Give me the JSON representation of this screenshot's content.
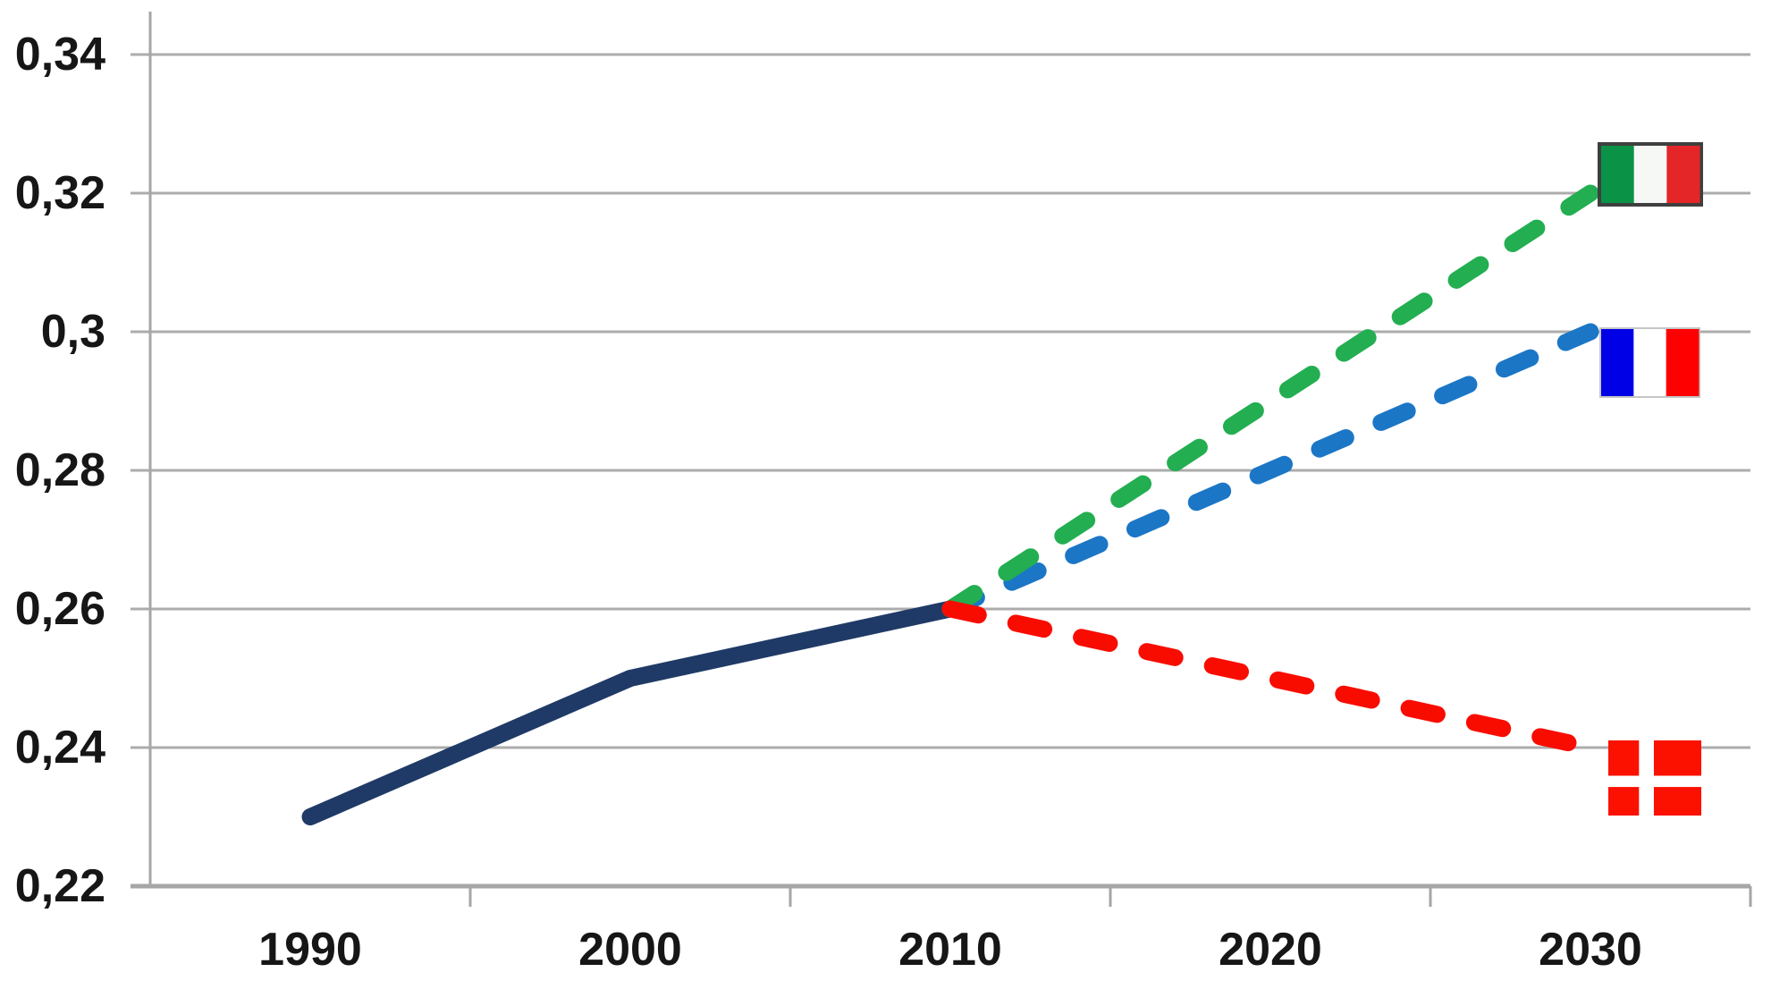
{
  "chart_data": {
    "type": "line",
    "title": "",
    "xlabel": "",
    "ylabel": "",
    "x": [
      1990,
      2000,
      2010,
      2020,
      2030
    ],
    "xtick_labels": [
      "1990",
      "2000",
      "2010",
      "2020",
      "2030"
    ],
    "ytick_labels": [
      "0,34",
      "0,32",
      "0,3",
      "0,28",
      "0,26",
      "0,24",
      "0,22"
    ],
    "ytick_values": [
      0.34,
      0.32,
      0.3,
      0.28,
      0.26,
      0.24,
      0.22
    ],
    "ylim": [
      0.22,
      0.34
    ],
    "grid": true,
    "legend": "none",
    "decimal_style": "comma",
    "series": [
      {
        "id": "historical",
        "name": "historical-line",
        "color": "#1F3A66",
        "dashed": false,
        "points": [
          [
            1990,
            0.23
          ],
          [
            2000,
            0.25
          ],
          [
            2010,
            0.26
          ]
        ]
      },
      {
        "id": "italy",
        "name": "italy-scenario-line",
        "color": "#23AE51",
        "dashed": true,
        "points": [
          [
            2010,
            0.26
          ],
          [
            2030,
            0.32
          ]
        ],
        "flag": "italy"
      },
      {
        "id": "france",
        "name": "france-scenario-line",
        "color": "#1B76C6",
        "dashed": true,
        "points": [
          [
            2010,
            0.26
          ],
          [
            2030,
            0.3
          ]
        ],
        "flag": "france"
      },
      {
        "id": "denmark",
        "name": "denmark-scenario-line",
        "color": "#F90C00",
        "dashed": true,
        "points": [
          [
            2010,
            0.26
          ],
          [
            2030,
            0.24
          ]
        ],
        "flag": "denmark"
      }
    ],
    "flags": {
      "italy": {
        "type": "vertical-tricolor",
        "stripes": [
          "#0A9347",
          "#F6F8F6",
          "#E52629"
        ],
        "border": "#3F3F3F"
      },
      "france": {
        "type": "vertical-tricolor",
        "stripes": [
          "#0000E6",
          "#FFFFFF",
          "#FF0000"
        ],
        "border": "#C6C6C6"
      },
      "denmark": {
        "type": "nordic-cross",
        "field": "#FC1000",
        "cross": "#FFFFFF"
      }
    },
    "colors": {
      "gridline": "#ACACAC",
      "axis": "#A6A6A6",
      "text": "#161616",
      "background": "#FFFFFF"
    }
  }
}
